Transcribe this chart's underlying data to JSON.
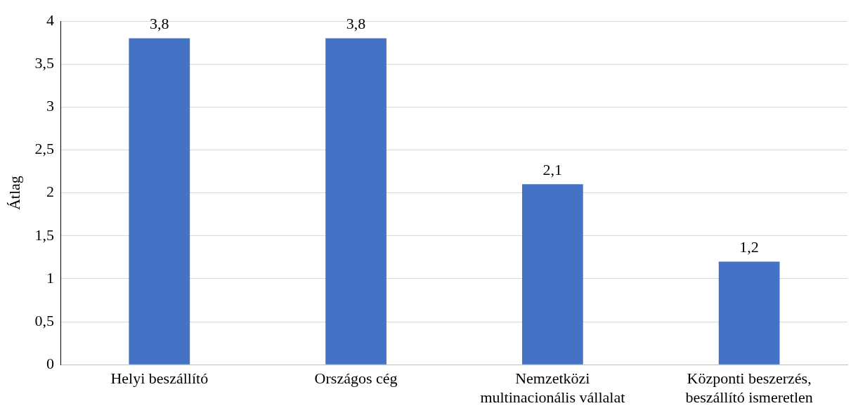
{
  "chart_data": {
    "type": "bar",
    "ylabel": "Átlag",
    "categories": [
      "Helyi beszállító",
      "Országos cég",
      "Nemzetközi multinacionális vállalat",
      "Központi beszerzés, beszállító ismeretlen"
    ],
    "values": [
      3.8,
      3.8,
      2.1,
      1.2
    ],
    "value_labels": [
      "3,8",
      "3,8",
      "2,1",
      "1,2"
    ],
    "color": "#4472c4",
    "ylim": [
      0,
      4
    ],
    "yticks": [
      0,
      {
        "value": 0.5,
        "label": "0,5"
      },
      1,
      {
        "value": 1.5,
        "label": "1,5"
      },
      2,
      {
        "value": 2.5,
        "label": "2,5"
      },
      3,
      {
        "value": 3.5,
        "label": "3,5"
      },
      4
    ],
    "grid": "y",
    "legend": false
  }
}
